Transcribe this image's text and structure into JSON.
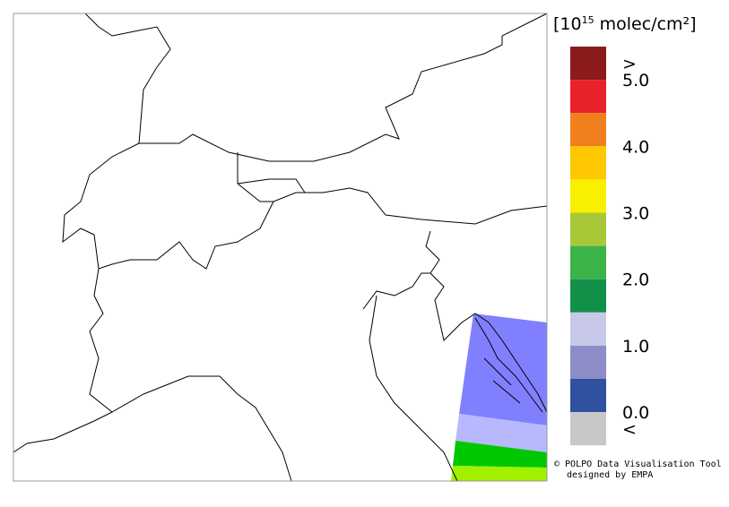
{
  "legend": {
    "unit": {
      "open": "[10",
      "exponent": "15",
      "rest": " molec/cm²]"
    },
    "colors": [
      "#8b1a1a",
      "#e8222a",
      "#f07f1e",
      "#ffc800",
      "#f8f000",
      "#a8c838",
      "#3cb44a",
      "#12904a",
      "#c8c8e8",
      "#8c8cc8",
      "#3050a0",
      "#c8c8c8"
    ],
    "labels": [
      ">",
      "5.0",
      "4.0",
      "3.0",
      "2.0",
      "1.0",
      "0.0",
      "<"
    ]
  },
  "footer": {
    "line1": "© POLPO Data Visualisation Tool",
    "line2": "designed by EMPA"
  }
}
